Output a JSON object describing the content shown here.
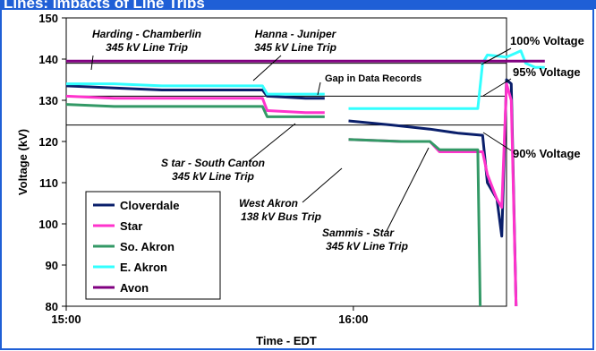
{
  "page": {
    "banner_title": "Lines: Impacts of Line Trips"
  },
  "chart_data": {
    "type": "line",
    "xlabel": "Time - EDT",
    "ylabel": "Voltage (kV)",
    "x_tick_labels": [
      "15:00",
      "16:00"
    ],
    "x_range_minutes": [
      0,
      92
    ],
    "ylim": [
      80,
      150
    ],
    "y_ticks": [
      80,
      90,
      100,
      110,
      120,
      130,
      140,
      150
    ],
    "reference_lines": [
      {
        "label": "100% Voltage",
        "value": 139
      },
      {
        "label": "95% Voltage",
        "value": 131
      },
      {
        "label": "90% Voltage",
        "value": 124
      }
    ],
    "annotations": [
      {
        "id": "harding",
        "line1": "Harding - Chamberlin",
        "line2": "345 kV Line Trip"
      },
      {
        "id": "hanna",
        "line1": "Hanna - Juniper",
        "line2": "345 kV Line Trip"
      },
      {
        "id": "gap",
        "line1": "Gap in Data Records",
        "line2": ""
      },
      {
        "id": "star",
        "line1": "S tar - South Canton",
        "line2": "345 kV Line Trip"
      },
      {
        "id": "westakron",
        "line1": "West Akron",
        "line2": "138 kV Bus Trip"
      },
      {
        "id": "sammis",
        "line1": "Sammis - Star",
        "line2": "345 kV Line Trip"
      }
    ],
    "legend_position": "bottom-left",
    "series": [
      {
        "name": "Cloverdale",
        "color": "#0a1f6b",
        "points": [
          [
            0,
            133.5
          ],
          [
            10,
            133
          ],
          [
            20,
            132.5
          ],
          [
            30,
            132.5
          ],
          [
            41,
            132.5
          ],
          [
            42,
            131
          ],
          [
            50,
            130.5
          ],
          [
            54,
            130.5
          ],
          null,
          [
            59,
            125
          ],
          [
            68,
            124
          ],
          [
            76,
            123
          ],
          [
            82,
            122
          ],
          [
            87,
            121.5
          ],
          [
            88,
            110
          ],
          [
            90,
            106
          ],
          [
            91,
            97
          ],
          [
            92,
            135
          ],
          [
            93,
            134
          ],
          [
            94,
            80
          ]
        ]
      },
      {
        "name": "Star",
        "color": "#ff33cc",
        "points": [
          [
            0,
            131
          ],
          [
            10,
            130.5
          ],
          [
            20,
            130.5
          ],
          [
            30,
            130.5
          ],
          [
            41,
            130.5
          ],
          [
            42,
            127.5
          ],
          [
            50,
            127
          ],
          [
            54,
            127
          ],
          null,
          [
            59,
            120.5
          ],
          [
            70,
            120
          ],
          [
            76,
            120
          ],
          [
            78,
            117.5
          ],
          [
            82,
            117.5
          ],
          [
            87,
            117.5
          ],
          [
            88,
            112
          ],
          [
            90,
            106
          ],
          [
            91,
            104
          ],
          [
            92,
            134
          ],
          [
            93,
            130
          ],
          [
            94,
            80
          ]
        ]
      },
      {
        "name": "So. Akron",
        "color": "#339966",
        "points": [
          [
            0,
            129
          ],
          [
            10,
            128.5
          ],
          [
            20,
            128.5
          ],
          [
            30,
            128.5
          ],
          [
            41,
            128.5
          ],
          [
            42,
            126
          ],
          [
            54,
            126
          ],
          null,
          [
            59,
            120.5
          ],
          [
            70,
            120
          ],
          [
            76,
            120
          ],
          [
            78,
            118
          ],
          [
            86,
            118
          ],
          [
            86.5,
            80
          ]
        ]
      },
      {
        "name": "E. Akron",
        "color": "#33ffff",
        "points": [
          [
            0,
            134
          ],
          [
            10,
            134
          ],
          [
            20,
            133.5
          ],
          [
            30,
            133.5
          ],
          [
            41,
            133.5
          ],
          [
            42,
            131.5
          ],
          [
            54,
            131.5
          ],
          null,
          [
            59,
            128
          ],
          [
            70,
            128
          ],
          [
            80,
            128
          ],
          [
            86,
            128
          ],
          [
            87,
            139
          ],
          [
            88,
            141
          ],
          [
            92,
            140.5
          ],
          [
            94,
            141.5
          ],
          [
            95,
            142
          ],
          [
            96,
            139
          ],
          [
            98,
            138
          ],
          [
            100,
            138
          ]
        ]
      },
      {
        "name": "Avon",
        "color": "#800080",
        "points": [
          [
            0,
            139.5
          ],
          [
            100,
            139.5
          ]
        ]
      }
    ]
  }
}
